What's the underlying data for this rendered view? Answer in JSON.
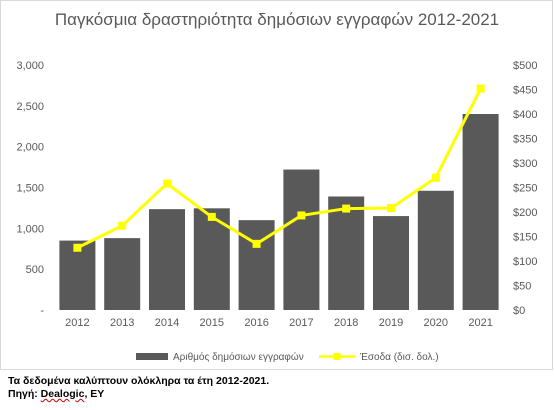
{
  "chart_data": {
    "type": "bar+line",
    "title": "Παγκόσμια δραστηριότητα δημόσιων εγγραφών 2012-2021",
    "categories": [
      "2012",
      "2013",
      "2014",
      "2015",
      "2016",
      "2017",
      "2018",
      "2019",
      "2020",
      "2021"
    ],
    "series": [
      {
        "name": "Αριθμός δημόσιων εγγραφών",
        "type": "bar",
        "axis": "left",
        "color": "#595959",
        "values": [
          850,
          880,
          1235,
          1245,
          1100,
          1720,
          1390,
          1150,
          1460,
          2400
        ]
      },
      {
        "name": "Έσοδα (δισ. δολ.)",
        "type": "line",
        "axis": "right",
        "color": "#ffff00",
        "values": [
          127,
          172,
          258,
          190,
          135,
          193,
          207,
          208,
          270,
          452
        ]
      }
    ],
    "y_left": {
      "min": 0,
      "max": 3000,
      "step": 500,
      "ticks": [
        "-",
        "500",
        "1,000",
        "1,500",
        "2,000",
        "2,500",
        "3,000"
      ]
    },
    "y_right": {
      "min": 0,
      "max": 500,
      "step": 50,
      "ticks": [
        "$0",
        "$50",
        "$100",
        "$150",
        "$200",
        "$250",
        "$300",
        "$350",
        "$400",
        "$450",
        "$500"
      ]
    },
    "grid": false,
    "legend_position": "bottom"
  },
  "notes": {
    "line1": "Τα δεδομένα καλύπτουν ολόκληρα τα έτη 2012-2021.",
    "line2_prefix": "Πηγή: ",
    "line2_source": "Dealogic",
    "line2_suffix": ", EY"
  }
}
